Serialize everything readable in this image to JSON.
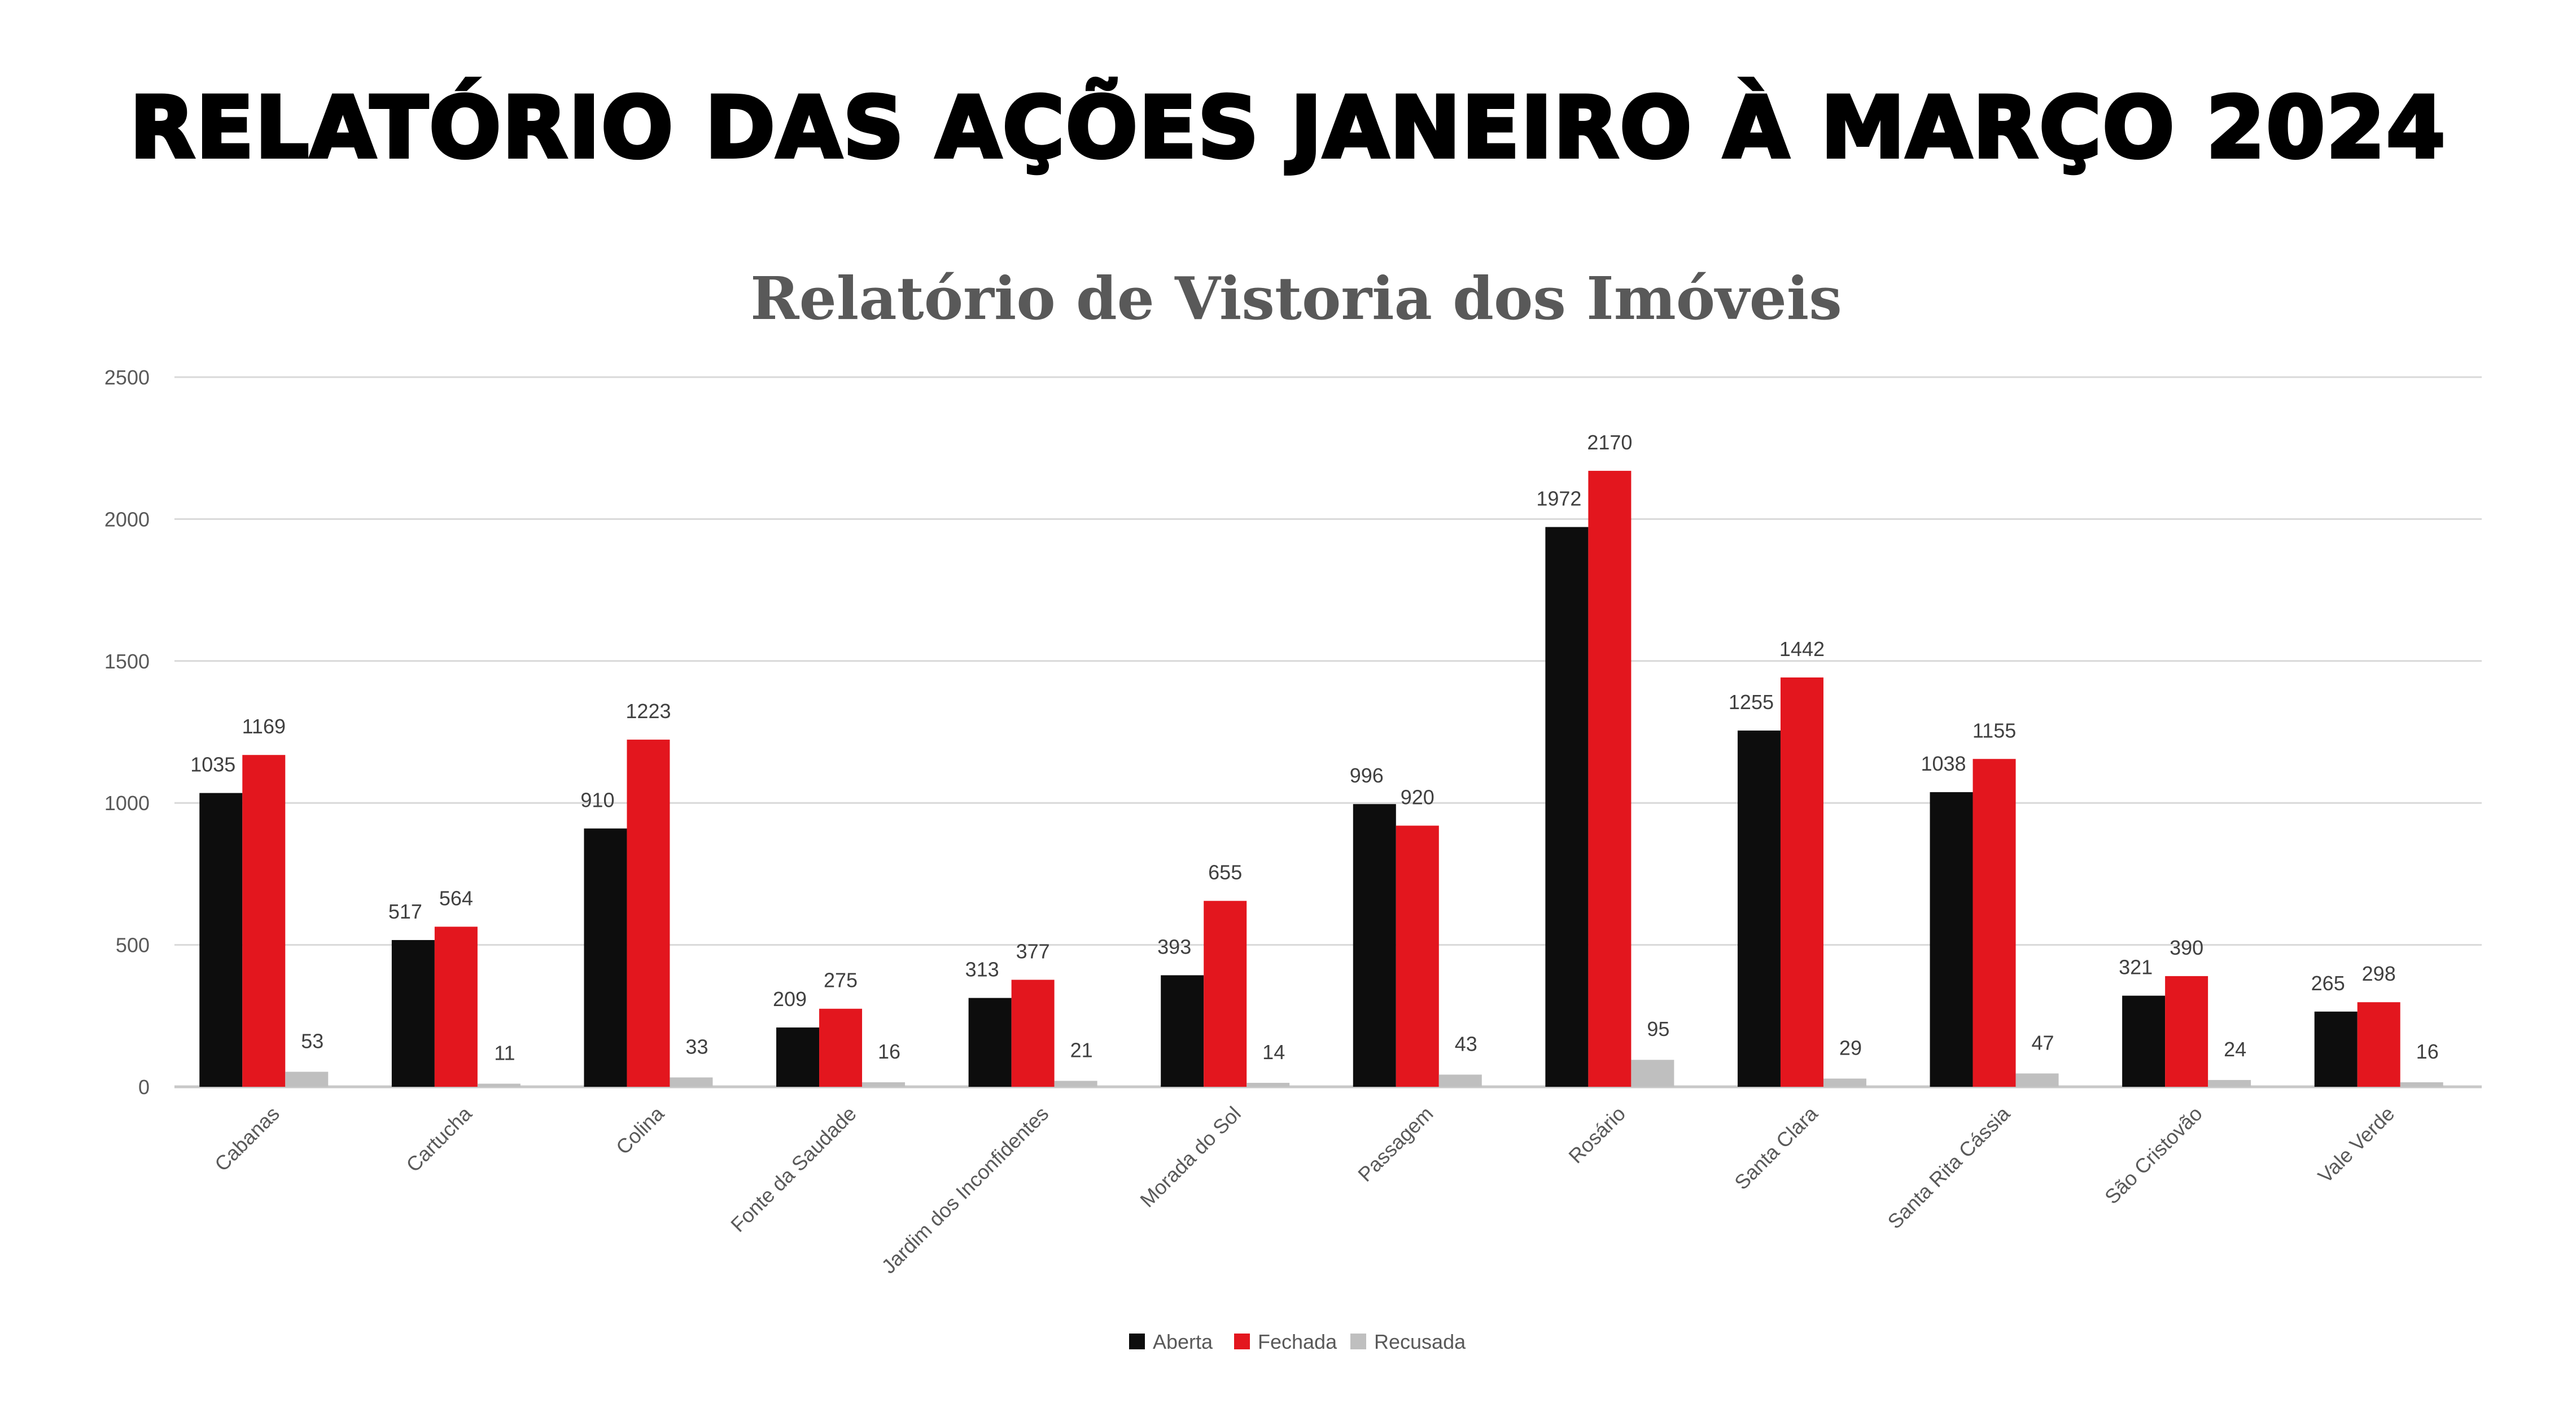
{
  "header": {
    "title": "RELATÓRIO DAS AÇÕES JANEIRO À MARÇO 2024"
  },
  "chart_data": {
    "type": "bar",
    "title": "Relatório de Vistoria dos Imóveis",
    "xlabel": "",
    "ylabel": "",
    "ylim": [
      0,
      2500
    ],
    "yticks": [
      0,
      500,
      1000,
      1500,
      2000,
      2500
    ],
    "grid": true,
    "legend_position": "bottom",
    "categories": [
      "Cabanas",
      "Cartucha",
      "Colina",
      "Fonte da Saudade",
      "Jardim dos Inconfidentes",
      "Morada do Sol",
      "Passagem",
      "Rosário",
      "Santa Clara",
      "Santa Rita Cássia",
      "São Cristovão",
      "Vale Verde"
    ],
    "series": [
      {
        "name": "Aberta",
        "color": "#0d0d0d",
        "values": [
          1035,
          517,
          910,
          209,
          313,
          393,
          996,
          1972,
          1255,
          1038,
          321,
          265
        ]
      },
      {
        "name": "Fechada",
        "color": "#e3161e",
        "values": [
          1169,
          564,
          1223,
          275,
          377,
          655,
          920,
          2170,
          1442,
          1155,
          390,
          298
        ]
      },
      {
        "name": "Recusada",
        "color": "#bfbfbf",
        "values": [
          53,
          11,
          33,
          16,
          21,
          14,
          43,
          95,
          29,
          47,
          24,
          16
        ]
      }
    ]
  }
}
